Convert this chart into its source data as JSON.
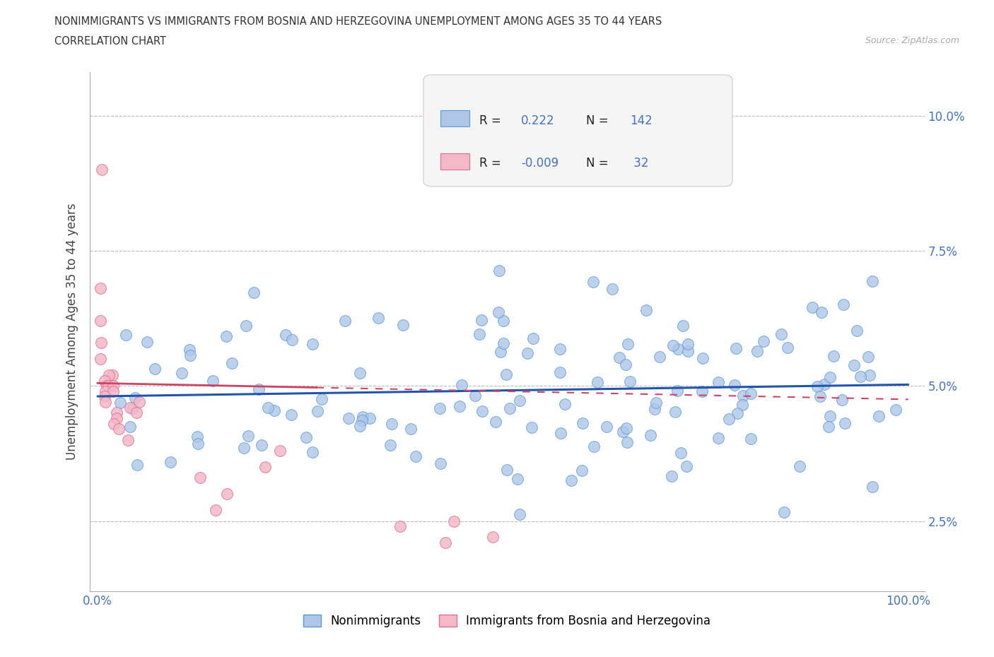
{
  "title_line1": "NONIMMIGRANTS VS IMMIGRANTS FROM BOSNIA AND HERZEGOVINA UNEMPLOYMENT AMONG AGES 35 TO 44 YEARS",
  "title_line2": "CORRELATION CHART",
  "source_text": "Source: ZipAtlas.com",
  "ylabel": "Unemployment Among Ages 35 to 44 years",
  "nonimm_color": "#aec6e8",
  "nonimm_edge_color": "#5b9bd5",
  "imm_color": "#f4b8c8",
  "imm_edge_color": "#e07090",
  "nonimm_line_color": "#2255aa",
  "imm_line_color": "#cc4466",
  "grid_color": "#bbbbbb",
  "background_color": "#ffffff",
  "R_nonimm": 0.222,
  "N_nonimm": 142,
  "R_imm": -0.009,
  "N_imm": 32,
  "legend_label_nonimm": "Nonimmigrants",
  "legend_label_imm": "Immigrants from Bosnia and Herzegovina",
  "text_color_title": "#333333",
  "text_color_axis": "#4472c4",
  "seed": 12345
}
